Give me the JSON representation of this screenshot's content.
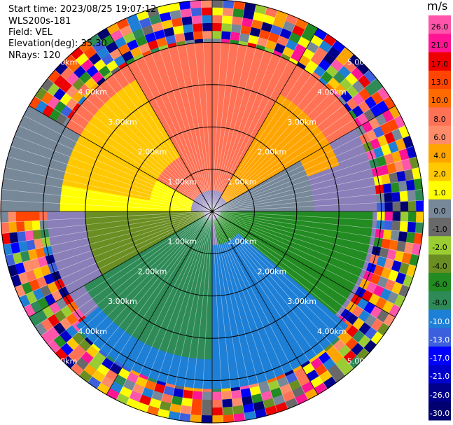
{
  "info": {
    "start_time": "Start time: 2023/08/25 19:07:12",
    "instrument": "WLS200s-181",
    "field": "Field: VEL",
    "elevation": "Elevation(deg): 35.30",
    "nrays": "NRays: 120"
  },
  "chart_data": {
    "type": "heatmap",
    "projection": "ppi-polar",
    "field": "VEL",
    "units": "m/s",
    "n_rays": 120,
    "elevation_deg": 35.3,
    "max_range_km": 5.0,
    "range_rings_km": [
      1,
      2,
      3,
      4,
      5
    ],
    "range_ring_labels": [
      "1.00km",
      "2.00km",
      "3.00km",
      "4.00km",
      "5.00km"
    ],
    "spoke_step_deg": 30,
    "colorbar": {
      "unit_label": "m/s",
      "ticks": [
        "26.0",
        "21.0",
        "17.0",
        "13.0",
        "10.0",
        "8.0",
        "6.0",
        "4.0",
        "2.0",
        "1.0",
        "0.0",
        "-1.0",
        "-2.0",
        "-4.0",
        "-6.0",
        "-8.0",
        "-10.0",
        "-13.0",
        "-17.0",
        "-21.0",
        "-26.0",
        "-30.0"
      ],
      "bins": [
        {
          "lo": 26,
          "hi": 30,
          "color": "#ff55aa"
        },
        {
          "lo": 21,
          "hi": 26,
          "color": "#ff1493"
        },
        {
          "lo": 17,
          "hi": 21,
          "color": "#ee0000"
        },
        {
          "lo": 13,
          "hi": 17,
          "color": "#ff4500"
        },
        {
          "lo": 10,
          "hi": 13,
          "color": "#ff6a00"
        },
        {
          "lo": 8,
          "hi": 10,
          "color": "#ff7256"
        },
        {
          "lo": 6,
          "hi": 8,
          "color": "#ff8c69"
        },
        {
          "lo": 4,
          "hi": 6,
          "color": "#ffa500"
        },
        {
          "lo": 2,
          "hi": 4,
          "color": "#ffc800"
        },
        {
          "lo": 1,
          "hi": 2,
          "color": "#ffff00"
        },
        {
          "lo": 0,
          "hi": 1,
          "color": "#778899"
        },
        {
          "lo": -1,
          "hi": 0,
          "color": "#696969"
        },
        {
          "lo": -2,
          "hi": -1,
          "color": "#9acd32"
        },
        {
          "lo": -4,
          "hi": -2,
          "color": "#6b8e23"
        },
        {
          "lo": -6,
          "hi": -4,
          "color": "#228b22"
        },
        {
          "lo": -8,
          "hi": -6,
          "color": "#2e8b57"
        },
        {
          "lo": -10,
          "hi": -8,
          "color": "#1e7fd6"
        },
        {
          "lo": -13,
          "hi": -10,
          "color": "#3c60dd"
        },
        {
          "lo": -17,
          "hi": -13,
          "color": "#0000ff"
        },
        {
          "lo": -21,
          "hi": -17,
          "color": "#0000cd"
        },
        {
          "lo": -26,
          "hi": -21,
          "color": "#00008b"
        },
        {
          "lo": -30,
          "hi": -26,
          "color": "#000070"
        }
      ]
    },
    "sectors": [
      {
        "from_az": 300,
        "to_az": 60,
        "inner_km": 0.5,
        "outer_km": 4.0,
        "velocity": 8.0
      },
      {
        "from_az": 30,
        "to_az": 70,
        "inner_km": 0.4,
        "outer_km": 3.2,
        "velocity": 4.0
      },
      {
        "from_az": 60,
        "to_az": 90,
        "inner_km": 0.2,
        "outer_km": 2.4,
        "velocity": 0.5
      },
      {
        "from_az": 90,
        "to_az": 170,
        "inner_km": 0.2,
        "outer_km": 3.8,
        "velocity": -6.0
      },
      {
        "from_az": 130,
        "to_az": 230,
        "inner_km": 0.8,
        "outer_km": 4.2,
        "velocity": -9.0
      },
      {
        "from_az": 180,
        "to_az": 240,
        "inner_km": 0.2,
        "outer_km": 3.5,
        "velocity": -7.0
      },
      {
        "from_az": 240,
        "to_az": 270,
        "inner_km": 0.2,
        "outer_km": 3.0,
        "velocity": -3.0
      },
      {
        "from_az": 270,
        "to_az": 300,
        "inner_km": 0.5,
        "outer_km": 3.6,
        "velocity": 1.5
      },
      {
        "from_az": 280,
        "to_az": 330,
        "inner_km": 1.5,
        "outer_km": 3.6,
        "velocity": 3.0
      },
      {
        "from_az": 270,
        "to_az": 300,
        "inner_km": 3.6,
        "outer_km": 5.0,
        "velocity": 0.5
      },
      {
        "from_az": 0,
        "to_az": 360,
        "inner_km": 0.0,
        "outer_km": 0.25,
        "velocity": -0.5
      }
    ]
  }
}
